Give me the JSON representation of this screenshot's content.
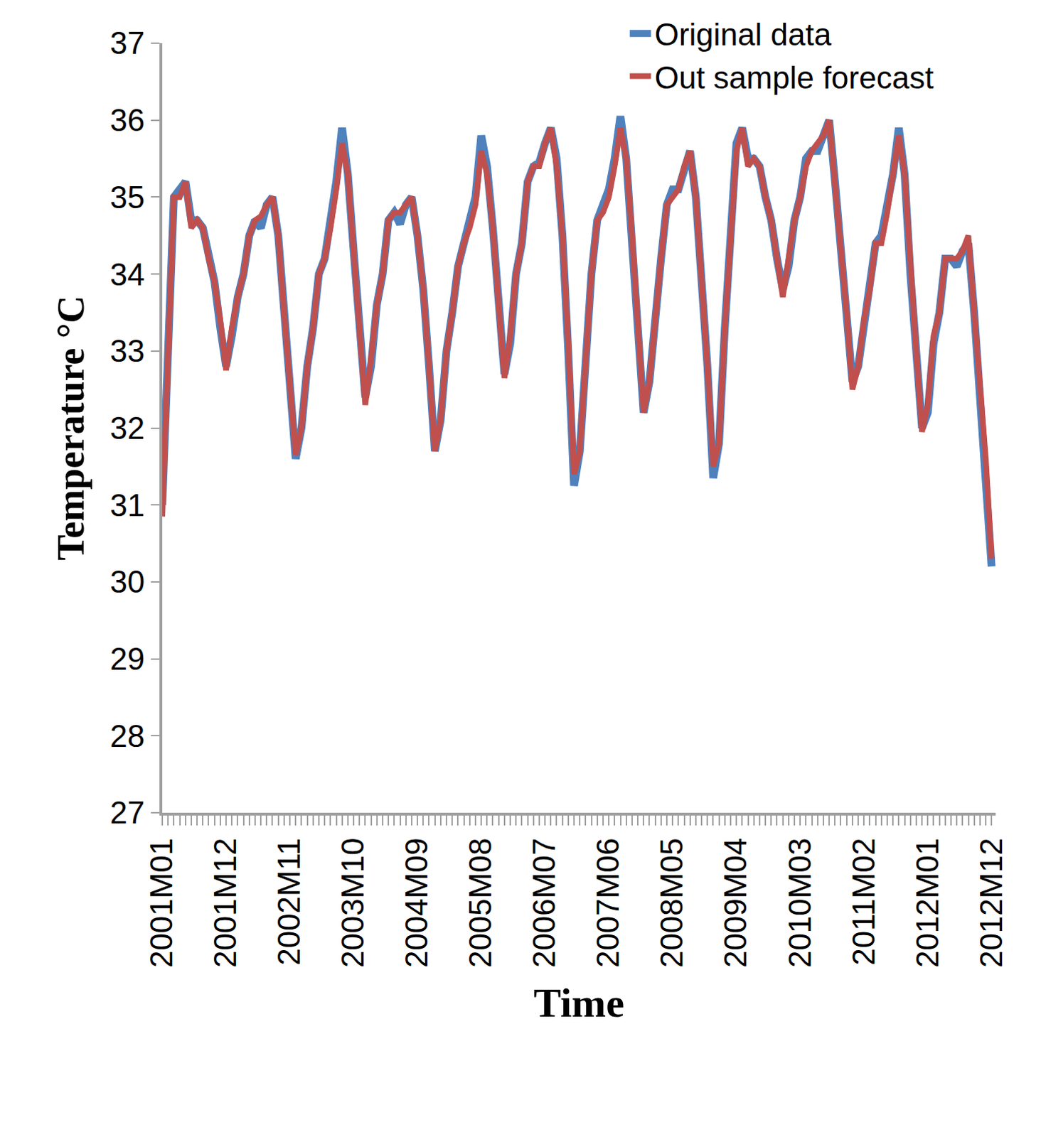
{
  "chart_data": {
    "type": "line",
    "x_label": "Time",
    "y_label": "Temperature °C",
    "categories": [
      "2001M01",
      null,
      null,
      null,
      null,
      null,
      null,
      null,
      null,
      null,
      null,
      "2001M12",
      null,
      null,
      null,
      null,
      null,
      null,
      null,
      null,
      null,
      null,
      "2002M11",
      null,
      null,
      null,
      null,
      null,
      null,
      null,
      null,
      null,
      null,
      "2003M10",
      null,
      null,
      null,
      null,
      null,
      null,
      null,
      null,
      null,
      null,
      "2004M09",
      null,
      null,
      null,
      null,
      null,
      null,
      null,
      null,
      null,
      null,
      "2005M08",
      null,
      null,
      null,
      null,
      null,
      null,
      null,
      null,
      null,
      null,
      "2006M07",
      null,
      null,
      null,
      null,
      null,
      null,
      null,
      null,
      null,
      null,
      "2007M06",
      null,
      null,
      null,
      null,
      null,
      null,
      null,
      null,
      null,
      null,
      "2008M05",
      null,
      null,
      null,
      null,
      null,
      null,
      null,
      null,
      null,
      null,
      "2009M04",
      null,
      null,
      null,
      null,
      null,
      null,
      null,
      null,
      null,
      null,
      "2010M03",
      null,
      null,
      null,
      null,
      null,
      null,
      null,
      null,
      null,
      null,
      "2011M02",
      null,
      null,
      null,
      null,
      null,
      null,
      null,
      null,
      null,
      null,
      "2012M01",
      null,
      null,
      null,
      null,
      null,
      null,
      null,
      null,
      null,
      null,
      "2012M12"
    ],
    "series": [
      {
        "name": "Original data",
        "color": "#4f81bd",
        "values": [
          31.0,
          33.0,
          35.0,
          35.1,
          35.2,
          34.7,
          34.7,
          34.6,
          34.2,
          33.9,
          33.3,
          32.8,
          33.2,
          33.7,
          34.0,
          34.5,
          34.7,
          34.6,
          34.9,
          35.0,
          34.5,
          33.5,
          32.6,
          31.6,
          32.0,
          32.8,
          33.3,
          34.0,
          34.2,
          34.7,
          35.2,
          35.9,
          35.3,
          34.3,
          33.3,
          32.4,
          32.8,
          33.6,
          34.0,
          34.7,
          34.8,
          34.65,
          34.9,
          35.0,
          34.5,
          33.8,
          32.8,
          31.7,
          32.1,
          33.0,
          33.5,
          34.1,
          34.4,
          34.7,
          35.0,
          35.8,
          35.4,
          34.6,
          33.6,
          32.7,
          33.1,
          34.0,
          34.4,
          35.2,
          35.4,
          35.45,
          35.7,
          35.9,
          35.5,
          34.5,
          33.0,
          31.25,
          31.7,
          33.0,
          34.0,
          34.7,
          34.9,
          35.1,
          35.5,
          36.05,
          35.5,
          34.5,
          33.3,
          32.2,
          32.6,
          33.5,
          34.2,
          34.9,
          35.1,
          35.1,
          35.4,
          35.6,
          35.0,
          34.0,
          32.8,
          31.35,
          31.8,
          33.3,
          34.5,
          35.7,
          35.9,
          35.5,
          35.5,
          35.4,
          35.0,
          34.7,
          34.2,
          33.8,
          34.1,
          34.7,
          35.0,
          35.5,
          35.6,
          35.6,
          35.8,
          36.0,
          35.2,
          34.3,
          33.5,
          32.6,
          32.8,
          33.4,
          33.8,
          34.4,
          34.5,
          34.9,
          35.3,
          35.9,
          35.3,
          34.0,
          33.0,
          32.0,
          32.2,
          33.1,
          33.5,
          34.2,
          34.2,
          34.1,
          34.3,
          34.4,
          33.5,
          32.5,
          31.5,
          30.2
        ]
      },
      {
        "name": "Out sample forecast",
        "color": "#c0504d",
        "values": [
          30.85,
          33.0,
          35.0,
          35.0,
          35.2,
          34.6,
          34.7,
          34.6,
          34.2,
          33.9,
          33.4,
          32.75,
          33.3,
          33.7,
          34.0,
          34.5,
          34.7,
          34.75,
          34.9,
          35.0,
          34.5,
          33.5,
          32.6,
          31.65,
          32.0,
          32.8,
          33.3,
          34.0,
          34.2,
          34.6,
          35.1,
          35.7,
          35.3,
          34.3,
          33.3,
          32.3,
          32.9,
          33.6,
          34.0,
          34.7,
          34.8,
          34.8,
          34.9,
          35.0,
          34.5,
          33.8,
          32.8,
          31.7,
          32.1,
          33.0,
          33.5,
          34.1,
          34.4,
          34.6,
          34.9,
          35.6,
          35.3,
          34.6,
          33.6,
          32.65,
          33.2,
          34.0,
          34.4,
          35.2,
          35.4,
          35.4,
          35.7,
          35.9,
          35.4,
          34.5,
          33.1,
          31.4,
          31.7,
          33.0,
          34.0,
          34.7,
          34.8,
          35.0,
          35.4,
          35.9,
          35.5,
          34.5,
          33.3,
          32.2,
          32.6,
          33.5,
          34.2,
          34.9,
          35.0,
          35.1,
          35.4,
          35.6,
          35.0,
          34.0,
          32.8,
          31.5,
          31.8,
          33.3,
          34.5,
          35.6,
          35.9,
          35.4,
          35.5,
          35.4,
          35.0,
          34.7,
          34.2,
          33.7,
          34.2,
          34.7,
          35.0,
          35.4,
          35.6,
          35.7,
          35.8,
          36.0,
          35.2,
          34.3,
          33.5,
          32.5,
          32.8,
          33.4,
          33.8,
          34.4,
          34.4,
          34.8,
          35.3,
          35.8,
          35.3,
          34.0,
          33.0,
          31.95,
          32.3,
          33.2,
          33.5,
          34.2,
          34.2,
          34.2,
          34.3,
          34.5,
          33.5,
          32.5,
          31.6,
          30.3
        ]
      }
    ],
    "ylim": [
      27,
      37
    ],
    "yticks": [
      27,
      28,
      29,
      30,
      31,
      32,
      33,
      34,
      35,
      36,
      37
    ],
    "grid": false,
    "legend": "top right"
  }
}
